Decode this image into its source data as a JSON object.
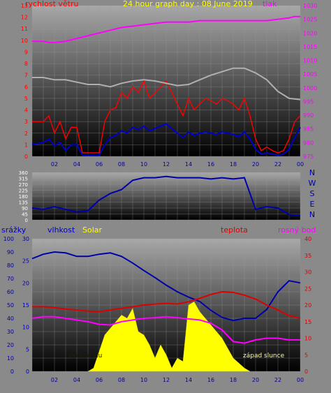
{
  "chart_data": [
    {
      "type": "line",
      "title": "24 hour graph day : 08 June 2019",
      "left_axis_label": "rychlost větru",
      "right_axis_label": "tlak",
      "x_ticks": [
        "02",
        "04",
        "06",
        "08",
        "10",
        "12",
        "14",
        "16",
        "18",
        "20",
        "22",
        "00"
      ],
      "left_ticks": [
        "0",
        "1",
        "2",
        "3",
        "4",
        "5",
        "6",
        "7",
        "8",
        "9",
        "10",
        "11",
        "12",
        "13"
      ],
      "right_ticks": [
        "975",
        "980",
        "985",
        "990",
        "995",
        "1000",
        "1005",
        "1010",
        "1015",
        "1020",
        "1025",
        "1030"
      ],
      "left_range": [
        0,
        13
      ],
      "right_range": [
        975,
        1030
      ],
      "series": [
        {
          "key": "gust",
          "color": "#ff0000",
          "axis": "left",
          "x": [
            0,
            1,
            1.5,
            2,
            2.5,
            3,
            3.5,
            4,
            4.5,
            5,
            5.5,
            6,
            6.5,
            7,
            7.5,
            8,
            8.5,
            9,
            9.5,
            10,
            10.5,
            11,
            11.5,
            12,
            12.5,
            13,
            13.5,
            14,
            14.5,
            15,
            15.5,
            16,
            16.5,
            17,
            17.5,
            18,
            18.5,
            19,
            19.5,
            20,
            20.5,
            21,
            21.5,
            22,
            22.5,
            23,
            23.5,
            24
          ],
          "values": [
            3,
            3,
            3.5,
            2,
            3,
            1.5,
            2.5,
            2.5,
            0.3,
            0.3,
            0.3,
            0.3,
            3,
            4,
            4.2,
            5.5,
            5,
            6,
            5.5,
            6.5,
            5,
            5.5,
            6,
            6.5,
            5.5,
            4.5,
            3.5,
            5,
            4,
            4.5,
            5,
            4.8,
            4.5,
            5,
            4.8,
            4.5,
            4,
            5,
            3.5,
            1.5,
            0.5,
            0.8,
            0.5,
            0.3,
            0.5,
            1.5,
            3,
            3.5
          ]
        },
        {
          "key": "wind",
          "color": "#0000cc",
          "axis": "left",
          "x": [
            0,
            1,
            1.5,
            2,
            2.5,
            3,
            3.5,
            4,
            4.5,
            5,
            5.5,
            6,
            6.5,
            7,
            7.5,
            8,
            8.5,
            9,
            9.5,
            10,
            10.5,
            11,
            11.5,
            12,
            12.5,
            13,
            13.5,
            14,
            14.5,
            15,
            15.5,
            16,
            16.5,
            17,
            17.5,
            18,
            18.5,
            19,
            19.5,
            20,
            20.5,
            21,
            21.5,
            22,
            22.5,
            23,
            23.5,
            24
          ],
          "values": [
            1,
            1.2,
            1.5,
            0.9,
            1.2,
            0.5,
            1,
            1,
            0.1,
            0.1,
            0.1,
            0.1,
            1,
            1.6,
            1.8,
            2.2,
            2,
            2.5,
            2.3,
            2.6,
            2.2,
            2.4,
            2.6,
            2.8,
            2.4,
            2,
            1.6,
            2.1,
            1.8,
            2,
            2.1,
            2,
            1.9,
            2.1,
            2,
            1.9,
            1.7,
            2.1,
            1.5,
            0.6,
            0.2,
            0.3,
            0.2,
            0.1,
            0.2,
            0.6,
            1.6,
            2.5
          ]
        },
        {
          "key": "pressure",
          "color": "#ff00ff",
          "axis": "right",
          "x": [
            0,
            1,
            1.5,
            2,
            3,
            4,
            5,
            6,
            7,
            8,
            9,
            10,
            11,
            12,
            13,
            14,
            15,
            16,
            17,
            18,
            19,
            20,
            21,
            22,
            23,
            23.5,
            24
          ],
          "values": [
            1017,
            1017,
            1016.5,
            1016.5,
            1017,
            1018,
            1019,
            1020,
            1021,
            1022,
            1022.5,
            1023,
            1023.5,
            1024,
            1024,
            1024,
            1024.5,
            1024.5,
            1024.5,
            1024.5,
            1024.5,
            1024.5,
            1024.5,
            1025,
            1025.5,
            1026,
            1026
          ]
        },
        {
          "key": "temp_trace",
          "color": "#b0b0b0",
          "axis": "left",
          "x": [
            0,
            1,
            2,
            3,
            4,
            5,
            6,
            7,
            8,
            9,
            10,
            11,
            12,
            13,
            14,
            15,
            16,
            17,
            18,
            19,
            20,
            21,
            22,
            23,
            24
          ],
          "values": [
            6.8,
            6.8,
            6.6,
            6.6,
            6.4,
            6.2,
            6.2,
            6.0,
            6.3,
            6.5,
            6.6,
            6.5,
            6.3,
            6.1,
            6.2,
            6.6,
            7.0,
            7.3,
            7.6,
            7.6,
            7.2,
            6.6,
            5.6,
            5.0,
            4.9
          ]
        }
      ]
    },
    {
      "type": "scatter",
      "title": "wind direction",
      "right_label": [
        "N",
        "W",
        "S",
        "E",
        "N"
      ],
      "left_ticks": [
        "0",
        "45",
        "90",
        "135",
        "180",
        "225",
        "270",
        "315",
        "360"
      ],
      "x_ticks": [],
      "range": [
        0,
        360
      ],
      "series": [
        {
          "key": "direction",
          "color": "#0000aa",
          "x": [
            0,
            1,
            2,
            3,
            4,
            5,
            6,
            7,
            8,
            9,
            10,
            11,
            12,
            13,
            14,
            15,
            16,
            17,
            18,
            19,
            20,
            21,
            22,
            23,
            24
          ],
          "values": [
            90,
            80,
            100,
            80,
            60,
            70,
            150,
            200,
            230,
            300,
            320,
            320,
            330,
            320,
            320,
            320,
            310,
            320,
            310,
            320,
            80,
            100,
            90,
            40,
            30
          ]
        }
      ]
    },
    {
      "type": "line",
      "title": "",
      "labels": {
        "rain": "srážky",
        "humidity": "vlhkost",
        "solar": "Solar",
        "temp": "teplota",
        "dew": "rosný bod"
      },
      "annotations": {
        "sunrise": "východ slu",
        "sunset": "západ slunce"
      },
      "x_ticks": [
        "02",
        "04",
        "06",
        "08",
        "10",
        "12",
        "14",
        "16",
        "18",
        "20",
        "22",
        "00"
      ],
      "rain_ticks": [
        "0",
        "10",
        "20",
        "30",
        "40",
        "50",
        "60",
        "70",
        "80",
        "90",
        "100"
      ],
      "humidity_ticks": [
        "0",
        "5",
        "10",
        "15",
        "20",
        "25",
        "30"
      ],
      "temp_ticks": [
        "0",
        "5",
        "10",
        "15",
        "20",
        "25",
        "30",
        "35",
        "40"
      ],
      "rain_range": [
        0,
        100
      ],
      "humidity_range": [
        0,
        30
      ],
      "temp_range": [
        0,
        40
      ],
      "series": [
        {
          "key": "humidity",
          "color": "#0000aa",
          "axis": "humidity",
          "x": [
            0,
            1,
            2,
            3,
            4,
            5,
            6,
            7,
            8,
            9,
            10,
            11,
            12,
            13,
            14,
            15,
            16,
            17,
            18,
            19,
            20,
            21,
            22,
            23,
            24
          ],
          "values": [
            25.5,
            26.5,
            27,
            26.8,
            26,
            26,
            26.5,
            26.8,
            26,
            24.5,
            22.8,
            21.2,
            19.5,
            18,
            16.8,
            15.8,
            13.8,
            12.2,
            11.5,
            12,
            12,
            14,
            18,
            20.5,
            20
          ]
        },
        {
          "key": "temperature",
          "color": "#dd0000",
          "axis": "temp",
          "x": [
            0,
            1,
            2,
            3,
            4,
            5,
            6,
            7,
            8,
            9,
            10,
            11,
            12,
            13,
            14,
            15,
            16,
            17,
            18,
            19,
            20,
            21,
            22,
            23,
            24
          ],
          "values": [
            19.5,
            19.5,
            19.2,
            18.8,
            18.5,
            18.2,
            18,
            18.5,
            19,
            19.5,
            20,
            20.3,
            20.5,
            20.3,
            21,
            22,
            23.2,
            24,
            23.8,
            23,
            21.8,
            20,
            18.5,
            16.8,
            16
          ]
        },
        {
          "key": "dew_point",
          "color": "#ff00ff",
          "axis": "temp",
          "x": [
            0,
            1,
            2,
            3,
            4,
            5,
            6,
            7,
            8,
            9,
            10,
            11,
            12,
            13,
            14,
            15,
            16,
            17,
            18,
            19,
            20,
            21,
            22,
            23,
            24
          ],
          "values": [
            16,
            16.5,
            16.5,
            16,
            15.5,
            15,
            14.2,
            14,
            15,
            15.5,
            16,
            16.2,
            16.5,
            16.2,
            15.8,
            15.5,
            14.5,
            12.5,
            9,
            8.5,
            9.5,
            10,
            10,
            9.5,
            9.5
          ]
        },
        {
          "key": "solar",
          "color": "#ffff00",
          "axis": "temp",
          "x": [
            5,
            5.5,
            6,
            6.5,
            7,
            7.5,
            8,
            8.5,
            9,
            9.5,
            10,
            10.5,
            11,
            11.5,
            12,
            12.5,
            13,
            13.5,
            14,
            14.5,
            15,
            16,
            17,
            18,
            19,
            19.5
          ],
          "values": [
            0,
            1,
            6,
            11,
            13,
            15,
            17,
            16,
            19,
            12,
            11,
            8,
            4,
            8,
            5,
            1,
            4,
            3,
            20,
            21,
            18,
            14,
            10,
            4,
            1,
            0
          ]
        }
      ]
    }
  ]
}
